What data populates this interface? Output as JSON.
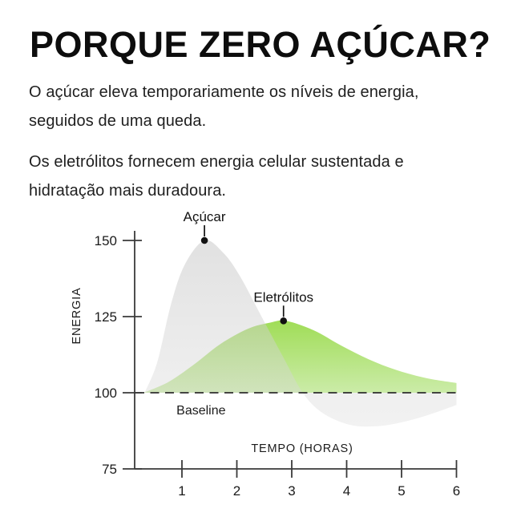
{
  "header": {
    "title": "PORQUE ZERO AÇÚCAR?",
    "paragraph1_lines": [
      "O açúcar eleva temporariamente os níveis de energia,",
      "seguidos de uma queda."
    ],
    "paragraph2_lines": [
      "Os eletrólitos fornecem energia celular sustentada e",
      "hidratação mais duradoura."
    ]
  },
  "colors": {
    "sugar_fill_top": "rgba(197,197,197,0.52)",
    "sugar_fill_bottom": "rgba(222,222,222,0.38)",
    "electrolyte_fill_top": "#9edc53",
    "electrolyte_fill_bottom": "#ccecaa",
    "text": "#161616"
  },
  "chart_data": {
    "type": "area",
    "title": "",
    "xlabel": "TEMPO (HORAS)",
    "ylabel": "ENERGIA",
    "xlim": [
      0,
      6
    ],
    "ylim": [
      75,
      160
    ],
    "x_ticks": [
      1,
      2,
      3,
      4,
      5,
      6
    ],
    "y_ticks": [
      150,
      125,
      100,
      75
    ],
    "grid": false,
    "legend": "inline-annotations",
    "baseline": {
      "label": "Baseline",
      "value": 100
    },
    "series": [
      {
        "name": "Açúcar",
        "style": "gray-translucent-area",
        "points": [
          [
            0.32,
            100
          ],
          [
            0.55,
            110
          ],
          [
            0.8,
            129
          ],
          [
            1.05,
            142
          ],
          [
            1.41,
            150
          ],
          [
            1.75,
            146
          ],
          [
            2.05,
            138.5
          ],
          [
            2.45,
            125
          ],
          [
            2.85,
            111.5
          ],
          [
            3.2,
            100
          ],
          [
            3.55,
            93.5
          ],
          [
            4.05,
            89.5
          ],
          [
            4.55,
            89
          ],
          [
            5.05,
            90.5
          ],
          [
            5.5,
            92.8
          ],
          [
            6,
            96
          ]
        ]
      },
      {
        "name": "Eletrólitos",
        "style": "green-gradient-area",
        "points": [
          [
            0.3,
            100
          ],
          [
            0.75,
            103.5
          ],
          [
            1.2,
            109
          ],
          [
            1.7,
            116
          ],
          [
            2.2,
            121
          ],
          [
            2.6,
            123
          ],
          [
            2.9,
            123.6
          ],
          [
            3.4,
            120.5
          ],
          [
            3.9,
            115.5
          ],
          [
            4.4,
            111
          ],
          [
            4.9,
            107.5
          ],
          [
            5.45,
            104.8
          ],
          [
            6,
            103.2
          ]
        ]
      }
    ],
    "annotations": [
      {
        "label": "Açúcar",
        "x": 1.41,
        "y": 150
      },
      {
        "label": "Eletrólitos",
        "x": 2.85,
        "y": 123.6
      }
    ]
  }
}
